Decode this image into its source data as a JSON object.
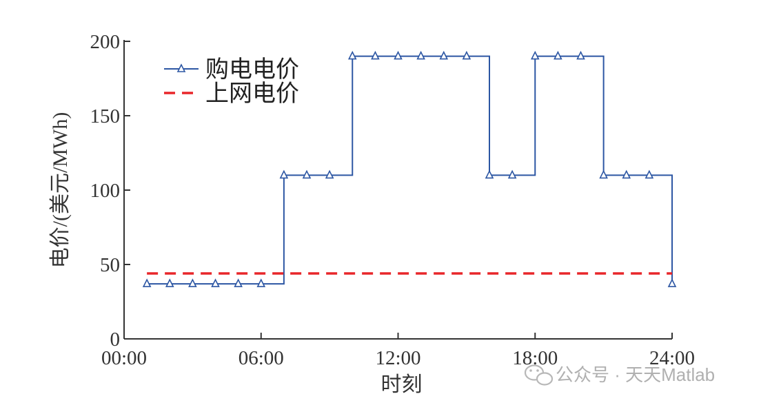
{
  "chart_data": {
    "type": "line",
    "title": "",
    "xlabel": "时刻",
    "ylabel": "电价/(美元/MWh)",
    "xlim": [
      0,
      24
    ],
    "ylim": [
      0,
      200
    ],
    "x_tick_labels": [
      "00:00",
      "06:00",
      "12:00",
      "18:00",
      "24:00"
    ],
    "x_tick_values": [
      0,
      6,
      12,
      18,
      24
    ],
    "y_tick_values": [
      0,
      50,
      100,
      150,
      200
    ],
    "y_tick_labels": [
      "0",
      "50",
      "100",
      "150",
      "200"
    ],
    "grid": false,
    "legend_position": "top-left",
    "series": [
      {
        "name": "购电电价",
        "style": "stairs-post",
        "marker": "triangle",
        "color": "#2c56a3",
        "x": [
          1,
          2,
          3,
          4,
          5,
          6,
          7,
          8,
          9,
          10,
          11,
          12,
          13,
          14,
          15,
          16,
          17,
          18,
          19,
          20,
          21,
          22,
          23,
          24
        ],
        "values": [
          37,
          37,
          37,
          37,
          37,
          37,
          110,
          110,
          110,
          190,
          190,
          190,
          190,
          190,
          190,
          110,
          110,
          190,
          190,
          190,
          110,
          110,
          110,
          37
        ]
      },
      {
        "name": "上网电价",
        "style": "dashed",
        "color": "#e8262a",
        "x": [
          1,
          24
        ],
        "values": [
          44,
          44
        ]
      }
    ]
  },
  "watermark": {
    "text": "公众号 · 天天Matlab",
    "icon": "wechat-icon"
  }
}
